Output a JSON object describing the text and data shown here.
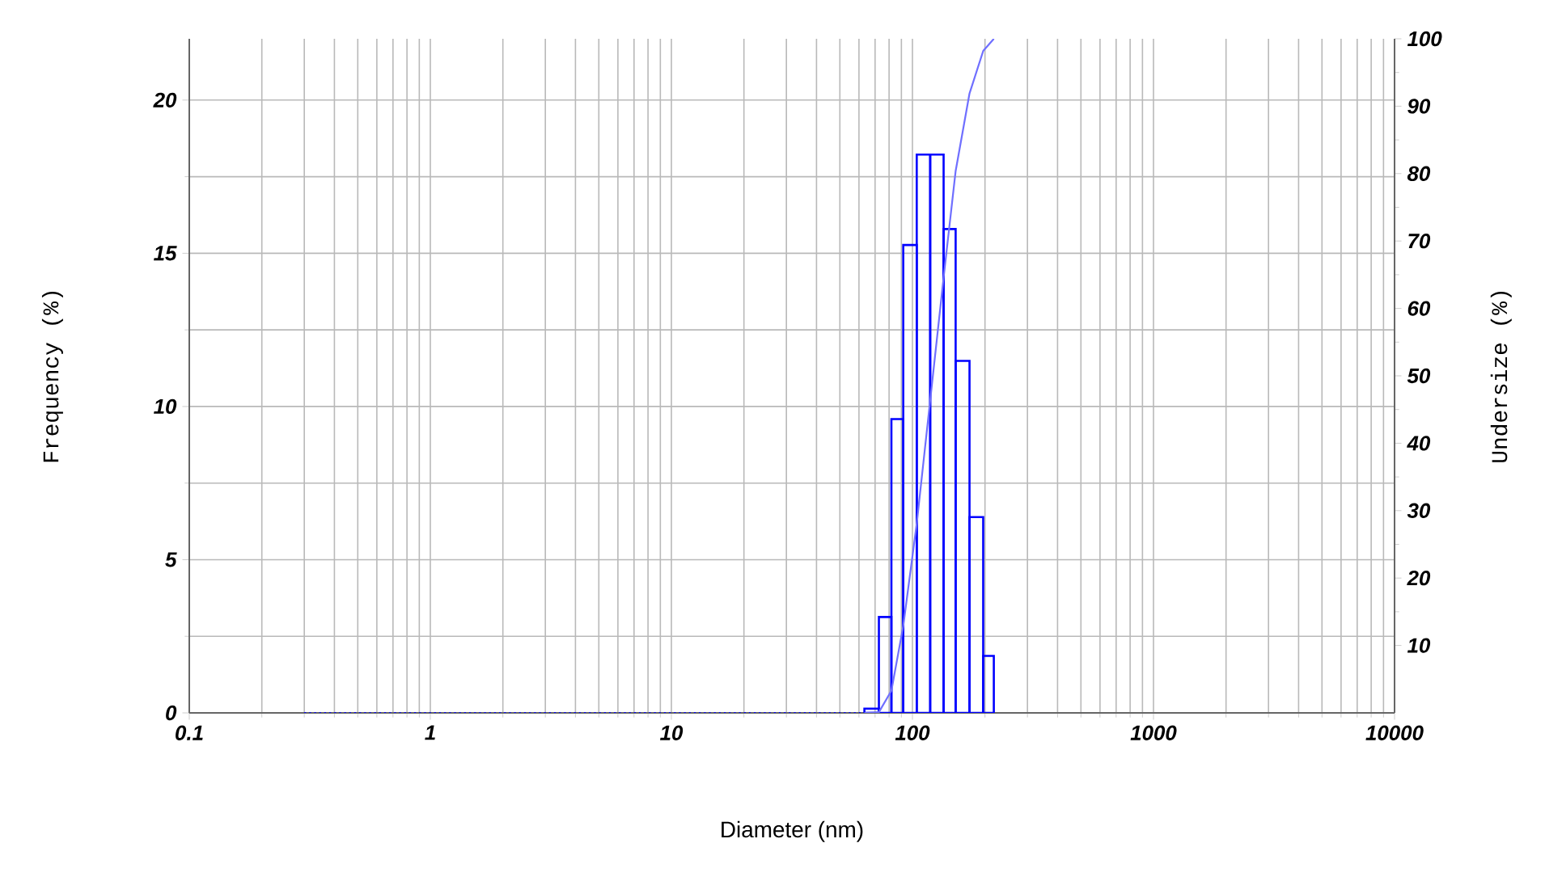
{
  "chart_data": {
    "type": "histogram",
    "xlabel": "Diameter (nm)",
    "ylabel": "Frequency (%)",
    "y2label": "Undersize (%)",
    "log": "x",
    "grid": true,
    "xlim": [
      0.1,
      10000
    ],
    "xticks": [
      {
        "value": 0.1,
        "label": "0.1"
      },
      1,
      10,
      100,
      1000,
      10000
    ],
    "ylim": [
      0,
      22
    ],
    "yticks": [
      0,
      5,
      10,
      15,
      20
    ],
    "y2lim": [
      0,
      100
    ],
    "y2ticks": [
      10,
      20,
      30,
      40,
      50,
      60,
      70,
      80,
      90,
      100
    ],
    "series": [
      {
        "color": "#0000ff",
        "bins": [
          63.2,
          72.6,
          81.8,
          91.6,
          104.2,
          118.5,
          134.7,
          151.1,
          172.5,
          196.6,
          217.6
        ],
        "values": [
          0.14,
          3.13,
          9.59,
          15.27,
          18.22,
          18.22,
          15.79,
          11.49,
          6.39,
          1.86
        ]
      },
      {
        "type": "line",
        "axis": "y2",
        "color": "#6f6fff",
        "line_style": "solid",
        "x": [
          63.2,
          72.6,
          81.8,
          91.6,
          104.2,
          118.5,
          134.7,
          151.1,
          172.5,
          196.6,
          217.6
        ],
        "values": [
          0,
          0.1,
          3.3,
          12.9,
          28.1,
          46.4,
          64.6,
          80.4,
          91.9,
          98.2,
          100
        ]
      },
      {
        "type": "line",
        "color": "#0000ff",
        "line_style": "dotted",
        "x": [
          0.3,
          63.2
        ],
        "values": [
          0,
          0
        ]
      }
    ]
  }
}
